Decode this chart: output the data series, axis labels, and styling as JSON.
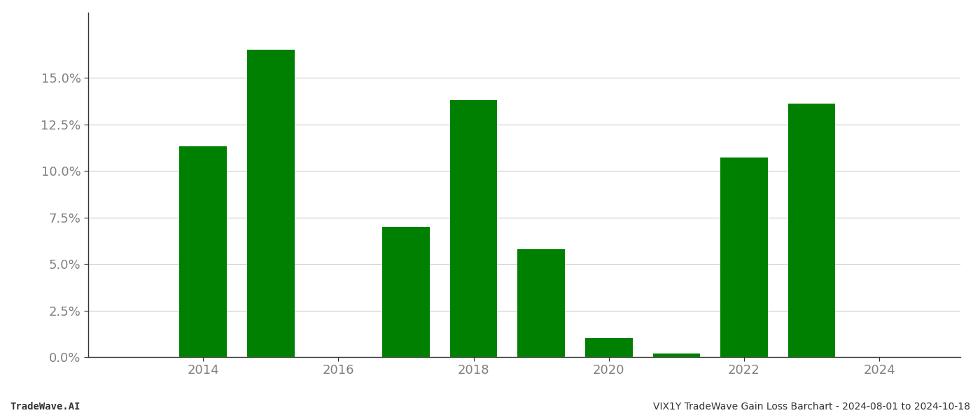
{
  "years": [
    2014,
    2015,
    2017,
    2018,
    2019,
    2020,
    2021,
    2022,
    2023
  ],
  "values": [
    0.113,
    0.165,
    0.07,
    0.138,
    0.058,
    0.01,
    0.002,
    0.107,
    0.136
  ],
  "bar_color": "#008000",
  "footer_left": "TradeWave.AI",
  "footer_right": "VIX1Y TradeWave Gain Loss Barchart - 2024-08-01 to 2024-10-18",
  "xlim": [
    2012.3,
    2025.2
  ],
  "ylim": [
    0.0,
    0.185
  ],
  "yticks": [
    0.0,
    0.025,
    0.05,
    0.075,
    0.1,
    0.125,
    0.15
  ],
  "xticks": [
    2014,
    2016,
    2018,
    2020,
    2022,
    2024
  ],
  "bar_width": 0.7,
  "grid_color": "#cccccc",
  "background_color": "#ffffff",
  "axis_text_color": "#808080",
  "footer_text_color": "#333333",
  "footer_fontsize": 10,
  "tick_fontsize": 13,
  "spine_color": "#333333"
}
